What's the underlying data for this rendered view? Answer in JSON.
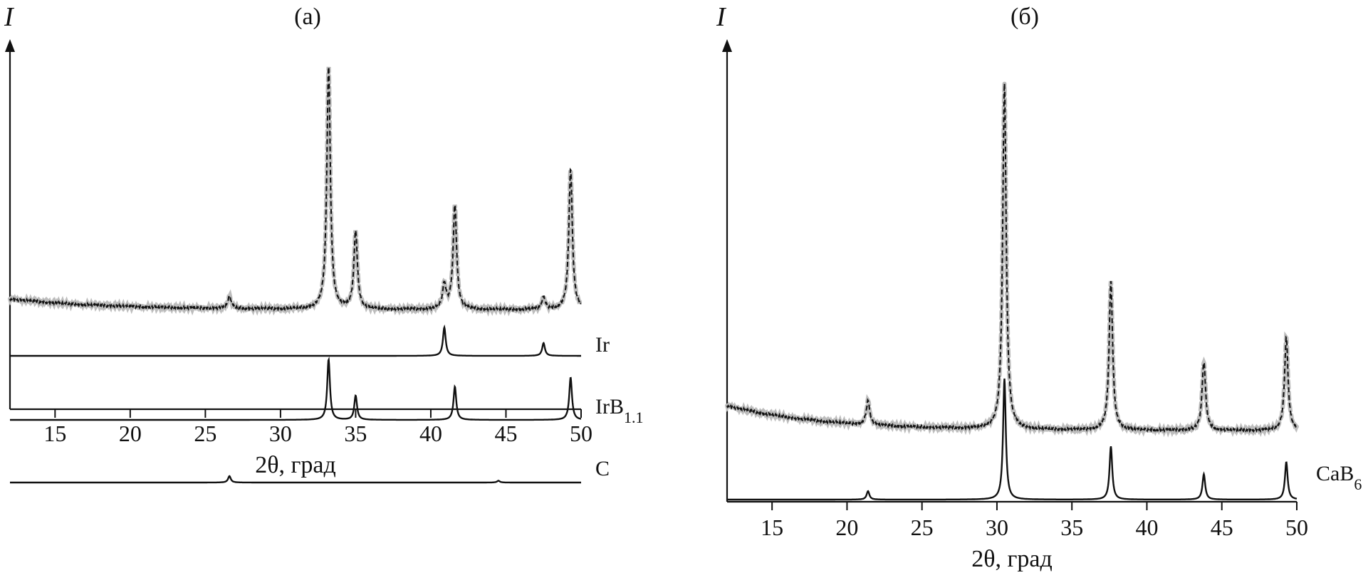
{
  "chart_data": [
    {
      "type": "line",
      "panel_label": "(a)",
      "ylabel": "I",
      "xlabel": "2θ, град",
      "xlim": [
        12,
        50
      ],
      "xticks": [
        15,
        20,
        25,
        30,
        35,
        40,
        45,
        50
      ],
      "grid": false,
      "legend": "labels-right",
      "experimental": {
        "peaks": [
          [
            26.6,
            0.05
          ],
          [
            33.2,
            1.0
          ],
          [
            35.0,
            0.32
          ],
          [
            40.9,
            0.1
          ],
          [
            41.6,
            0.43
          ],
          [
            47.5,
            0.05
          ],
          [
            49.3,
            0.58
          ]
        ],
        "colors": {
          "measured": "#111111",
          "calculated": "#bdbdbd"
        }
      },
      "series": [
        {
          "name": "Ir",
          "peaks": [
            [
              40.9,
              1.0
            ],
            [
              47.5,
              0.45
            ]
          ]
        },
        {
          "name": "IrB",
          "name_sub": "1.1",
          "peaks": [
            [
              33.2,
              1.0
            ],
            [
              35.0,
              0.4
            ],
            [
              41.6,
              0.55
            ],
            [
              49.3,
              0.7
            ]
          ]
        },
        {
          "name": "C",
          "peaks": [
            [
              26.6,
              0.9
            ],
            [
              44.5,
              0.25
            ]
          ]
        }
      ]
    },
    {
      "type": "line",
      "panel_label": "(б)",
      "ylabel": "I",
      "xlabel": "2θ, град",
      "xlim": [
        12,
        50
      ],
      "xticks": [
        15,
        20,
        25,
        30,
        35,
        40,
        45,
        50
      ],
      "grid": false,
      "legend": "labels-right",
      "experimental": {
        "peaks": [
          [
            21.4,
            0.07
          ],
          [
            30.5,
            1.0
          ],
          [
            37.6,
            0.43
          ],
          [
            43.8,
            0.2
          ],
          [
            49.3,
            0.27
          ]
        ],
        "colors": {
          "measured": "#111111",
          "calculated": "#bdbdbd"
        }
      },
      "series": [
        {
          "name": "CaB",
          "name_sub": "6",
          "peaks": [
            [
              21.4,
              0.07
            ],
            [
              30.5,
              1.0
            ],
            [
              37.6,
              0.44
            ],
            [
              43.8,
              0.21
            ],
            [
              49.3,
              0.31
            ]
          ]
        }
      ]
    }
  ]
}
